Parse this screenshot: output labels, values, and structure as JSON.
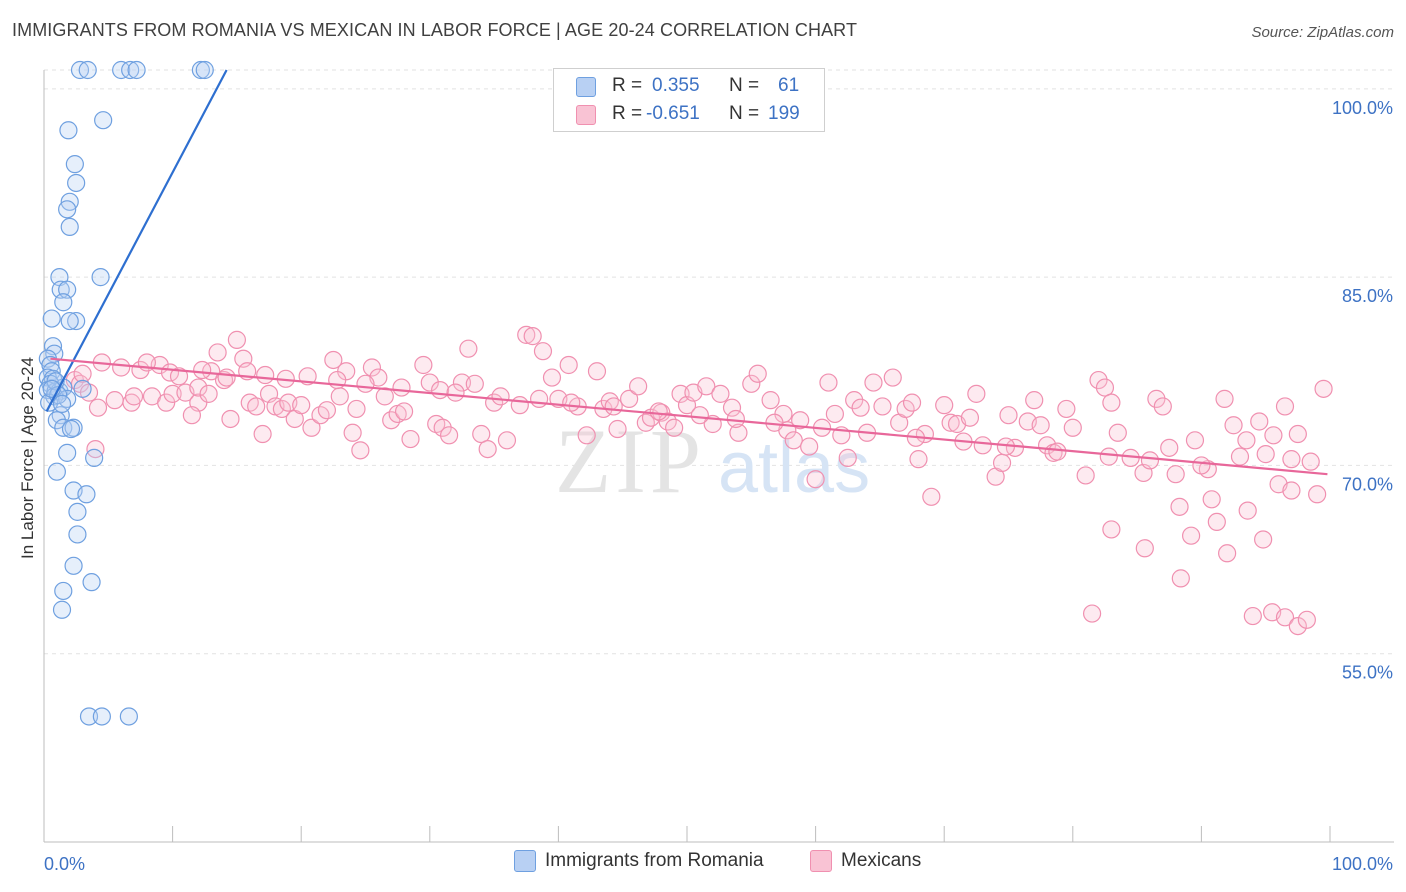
{
  "title": "IMMIGRANTS FROM ROMANIA VS MEXICAN IN LABOR FORCE | AGE 20-24 CORRELATION CHART",
  "source": "Source: ZipAtlas.com",
  "watermark": {
    "zip": "ZIP",
    "atlas": "atlas"
  },
  "legend_stats": [
    {
      "r_label": "R =",
      "r_value": "0.355",
      "n_label": "N =",
      "n_value": "61",
      "color": "#6fa0e0"
    },
    {
      "r_label": "R =",
      "r_value": "-0.651",
      "n_label": "N =",
      "n_value": "199",
      "color": "#f090b0"
    }
  ],
  "legend": [
    {
      "label": "Immigrants from Romania",
      "fill": "#b8d0f3",
      "stroke": "#6fa0e0"
    },
    {
      "label": "Mexicans",
      "fill": "#f9c3d4",
      "stroke": "#f090b0"
    }
  ],
  "chart_data": {
    "type": "scatter",
    "title": "IMMIGRANTS FROM ROMANIA VS MEXICAN IN LABOR FORCE | AGE 20-24 CORRELATION CHART",
    "xlabel": "",
    "ylabel": "In Labor Force | Age 20-24",
    "xlim": [
      0,
      100
    ],
    "ylim": [
      40,
      101.5
    ],
    "x_tick_labels": [
      "0.0%",
      "100.0%"
    ],
    "y_ticks": [
      55,
      70,
      85,
      100
    ],
    "y_tick_labels": [
      "55.0%",
      "70.0%",
      "85.0%",
      "100.0%"
    ],
    "grid": true,
    "colors": {
      "romania_stroke": "#6fa0e0",
      "romania_fill": "#b8d0f3",
      "romania_line": "#2e6fd0",
      "mexican_stroke": "#f090b0",
      "mexican_fill": "#f9c3d4",
      "mexican_line": "#e8679a",
      "tick_label": "#3d72c4",
      "grid": "#e2e2e2"
    },
    "series": [
      {
        "name": "Immigrants from Romania",
        "trend": [
          [
            0.2,
            74.3
          ],
          [
            14.2,
            101.5
          ]
        ],
        "points": [
          [
            2.8,
            101.5
          ],
          [
            3.4,
            101.5
          ],
          [
            6.0,
            101.5
          ],
          [
            6.7,
            101.5
          ],
          [
            7.2,
            101.5
          ],
          [
            12.2,
            101.5
          ],
          [
            12.5,
            101.5
          ],
          [
            4.6,
            97.5
          ],
          [
            1.9,
            96.7
          ],
          [
            2.4,
            94.0
          ],
          [
            2.5,
            92.5
          ],
          [
            2.0,
            91.0
          ],
          [
            1.8,
            90.4
          ],
          [
            2.0,
            89.0
          ],
          [
            1.2,
            85.0
          ],
          [
            4.4,
            85.0
          ],
          [
            1.3,
            84.0
          ],
          [
            1.8,
            84.0
          ],
          [
            1.5,
            83.0
          ],
          [
            0.6,
            81.7
          ],
          [
            2.5,
            81.5
          ],
          [
            2.0,
            81.5
          ],
          [
            0.7,
            79.5
          ],
          [
            0.8,
            78.9
          ],
          [
            0.3,
            78.5
          ],
          [
            0.5,
            78.0
          ],
          [
            0.6,
            77.5
          ],
          [
            0.3,
            77.0
          ],
          [
            0.7,
            76.9
          ],
          [
            0.5,
            76.5
          ],
          [
            0.3,
            76.0
          ],
          [
            0.9,
            75.9
          ],
          [
            1.2,
            75.9
          ],
          [
            1.5,
            76.2
          ],
          [
            3.0,
            76.1
          ],
          [
            0.8,
            75.5
          ],
          [
            1.8,
            75.3
          ],
          [
            0.4,
            75.0
          ],
          [
            1.3,
            74.0
          ],
          [
            1.0,
            73.6
          ],
          [
            1.5,
            73.0
          ],
          [
            2.3,
            73.0
          ],
          [
            1.8,
            71.0
          ],
          [
            3.9,
            70.6
          ],
          [
            1.0,
            69.5
          ],
          [
            2.3,
            68.0
          ],
          [
            3.3,
            67.7
          ],
          [
            2.6,
            66.3
          ],
          [
            2.6,
            64.5
          ],
          [
            2.3,
            62.0
          ],
          [
            1.5,
            60.0
          ],
          [
            3.7,
            60.7
          ],
          [
            1.4,
            58.5
          ],
          [
            3.5,
            50.0
          ],
          [
            4.5,
            50.0
          ],
          [
            6.6,
            50.0
          ],
          [
            0.9,
            76.7
          ],
          [
            1.1,
            75.6
          ],
          [
            0.6,
            76.1
          ],
          [
            1.4,
            74.9
          ],
          [
            2.1,
            72.9
          ]
        ]
      },
      {
        "name": "Mexicans",
        "trend": [
          [
            0.5,
            78.5
          ],
          [
            99.8,
            69.3
          ]
        ],
        "points": [
          [
            2.4,
            76.8
          ],
          [
            2.8,
            76.5
          ],
          [
            3.5,
            75.8
          ],
          [
            4.2,
            74.6
          ],
          [
            4.0,
            71.3
          ],
          [
            5.5,
            75.2
          ],
          [
            6.8,
            75.0
          ],
          [
            7.0,
            75.5
          ],
          [
            8.4,
            75.5
          ],
          [
            9.0,
            78.0
          ],
          [
            9.5,
            75.0
          ],
          [
            10.0,
            75.7
          ],
          [
            11.0,
            75.8
          ],
          [
            12.0,
            75.0
          ],
          [
            12.0,
            76.2
          ],
          [
            11.5,
            74.0
          ],
          [
            12.8,
            75.7
          ],
          [
            13.5,
            79.0
          ],
          [
            13.0,
            77.5
          ],
          [
            14.0,
            76.8
          ],
          [
            14.5,
            73.7
          ],
          [
            15.0,
            80.0
          ],
          [
            15.5,
            78.5
          ],
          [
            16.0,
            75.0
          ],
          [
            16.5,
            74.7
          ],
          [
            17.0,
            72.5
          ],
          [
            17.5,
            75.7
          ],
          [
            18.0,
            74.7
          ],
          [
            18.5,
            74.5
          ],
          [
            19.0,
            75.0
          ],
          [
            19.5,
            73.7
          ],
          [
            20.0,
            74.8
          ],
          [
            20.8,
            73.0
          ],
          [
            21.5,
            74.0
          ],
          [
            22.0,
            74.4
          ],
          [
            22.5,
            78.4
          ],
          [
            23.0,
            75.5
          ],
          [
            23.5,
            77.5
          ],
          [
            24.0,
            72.6
          ],
          [
            24.3,
            74.5
          ],
          [
            24.6,
            71.2
          ],
          [
            25.5,
            77.8
          ],
          [
            26.0,
            77.0
          ],
          [
            26.5,
            75.5
          ],
          [
            27.0,
            73.6
          ],
          [
            27.5,
            74.1
          ],
          [
            28.0,
            74.3
          ],
          [
            28.5,
            72.1
          ],
          [
            29.5,
            78.0
          ],
          [
            30.0,
            76.6
          ],
          [
            30.5,
            73.3
          ],
          [
            31.0,
            73.0
          ],
          [
            31.5,
            72.4
          ],
          [
            32.5,
            76.6
          ],
          [
            33.0,
            79.3
          ],
          [
            33.5,
            76.5
          ],
          [
            34.0,
            72.5
          ],
          [
            34.5,
            71.3
          ],
          [
            35.0,
            75.0
          ],
          [
            36.0,
            72.0
          ],
          [
            37.0,
            74.8
          ],
          [
            37.5,
            80.4
          ],
          [
            38.0,
            80.3
          ],
          [
            38.8,
            79.1
          ],
          [
            39.5,
            77.0
          ],
          [
            40.0,
            75.3
          ],
          [
            40.8,
            78.0
          ],
          [
            41.5,
            74.7
          ],
          [
            42.2,
            72.4
          ],
          [
            43.0,
            77.5
          ],
          [
            43.5,
            74.5
          ],
          [
            44.0,
            75.1
          ],
          [
            44.6,
            72.9
          ],
          [
            45.5,
            75.3
          ],
          [
            46.2,
            76.3
          ],
          [
            46.8,
            73.4
          ],
          [
            47.2,
            73.8
          ],
          [
            48.0,
            74.2
          ],
          [
            48.5,
            73.5
          ],
          [
            49.0,
            73.0
          ],
          [
            49.5,
            75.7
          ],
          [
            50.0,
            74.8
          ],
          [
            50.5,
            75.8
          ],
          [
            51.5,
            76.3
          ],
          [
            52.0,
            73.3
          ],
          [
            52.6,
            75.7
          ],
          [
            53.5,
            74.6
          ],
          [
            54.0,
            72.6
          ],
          [
            55.0,
            76.5
          ],
          [
            55.5,
            77.3
          ],
          [
            56.5,
            75.2
          ],
          [
            57.5,
            74.1
          ],
          [
            57.8,
            72.8
          ],
          [
            58.3,
            72.0
          ],
          [
            58.8,
            73.6
          ],
          [
            59.5,
            71.5
          ],
          [
            60.0,
            68.9
          ],
          [
            61.0,
            76.6
          ],
          [
            61.5,
            74.1
          ],
          [
            62.0,
            72.4
          ],
          [
            62.5,
            70.6
          ],
          [
            63.0,
            75.2
          ],
          [
            63.5,
            74.6
          ],
          [
            64.5,
            76.6
          ],
          [
            65.2,
            74.7
          ],
          [
            66.0,
            77.0
          ],
          [
            66.5,
            73.4
          ],
          [
            67.0,
            74.5
          ],
          [
            67.5,
            75.0
          ],
          [
            68.0,
            70.5
          ],
          [
            68.5,
            72.5
          ],
          [
            69.0,
            67.5
          ],
          [
            70.0,
            74.8
          ],
          [
            70.5,
            73.4
          ],
          [
            71.0,
            73.3
          ],
          [
            72.0,
            73.8
          ],
          [
            72.5,
            75.7
          ],
          [
            73.0,
            71.6
          ],
          [
            74.0,
            69.1
          ],
          [
            74.5,
            70.2
          ],
          [
            75.0,
            74.0
          ],
          [
            75.5,
            71.4
          ],
          [
            76.5,
            73.5
          ],
          [
            77.0,
            75.2
          ],
          [
            77.5,
            73.2
          ],
          [
            78.0,
            71.6
          ],
          [
            78.5,
            71.0
          ],
          [
            79.5,
            74.5
          ],
          [
            80.0,
            73.0
          ],
          [
            81.0,
            69.2
          ],
          [
            82.0,
            76.8
          ],
          [
            82.5,
            76.2
          ],
          [
            83.0,
            75.0
          ],
          [
            83.5,
            72.6
          ],
          [
            84.5,
            70.6
          ],
          [
            85.5,
            69.4
          ],
          [
            86.5,
            75.3
          ],
          [
            87.0,
            74.7
          ],
          [
            87.5,
            71.4
          ],
          [
            88.0,
            69.3
          ],
          [
            88.3,
            66.7
          ],
          [
            89.5,
            72.0
          ],
          [
            90.5,
            69.7
          ],
          [
            91.2,
            65.5
          ],
          [
            91.8,
            75.3
          ],
          [
            92.5,
            73.2
          ],
          [
            93.0,
            70.7
          ],
          [
            93.5,
            72.0
          ],
          [
            94.5,
            73.5
          ],
          [
            95.0,
            70.9
          ],
          [
            95.6,
            72.4
          ],
          [
            96.0,
            68.5
          ],
          [
            96.5,
            74.7
          ],
          [
            97.0,
            70.5
          ],
          [
            97.5,
            72.5
          ],
          [
            98.5,
            70.3
          ],
          [
            99.5,
            76.1
          ],
          [
            83.0,
            64.9
          ],
          [
            85.6,
            63.4
          ],
          [
            88.4,
            61.0
          ],
          [
            89.2,
            64.4
          ],
          [
            90.8,
            67.3
          ],
          [
            92.0,
            63.0
          ],
          [
            93.6,
            66.4
          ],
          [
            94.8,
            64.1
          ],
          [
            81.5,
            58.2
          ],
          [
            94.0,
            58.0
          ],
          [
            95.5,
            58.3
          ],
          [
            96.5,
            57.9
          ],
          [
            97.5,
            57.2
          ],
          [
            98.2,
            57.7
          ],
          [
            99.0,
            67.7
          ],
          [
            97.0,
            68.0
          ],
          [
            3.0,
            77.3
          ],
          [
            4.5,
            78.2
          ],
          [
            6.0,
            77.8
          ],
          [
            7.5,
            77.6
          ],
          [
            8.0,
            78.2
          ],
          [
            9.8,
            77.4
          ],
          [
            10.5,
            77.1
          ],
          [
            12.3,
            77.6
          ],
          [
            14.2,
            77.0
          ],
          [
            15.8,
            77.5
          ],
          [
            17.2,
            77.2
          ],
          [
            18.8,
            76.9
          ],
          [
            20.5,
            77.1
          ],
          [
            22.8,
            76.8
          ],
          [
            25.0,
            76.5
          ],
          [
            27.8,
            76.2
          ],
          [
            30.8,
            76.0
          ],
          [
            32.0,
            75.8
          ],
          [
            35.5,
            75.5
          ],
          [
            38.5,
            75.3
          ],
          [
            41.0,
            75.0
          ],
          [
            44.3,
            74.7
          ],
          [
            47.8,
            74.3
          ],
          [
            51.0,
            74.0
          ],
          [
            53.8,
            73.7
          ],
          [
            56.8,
            73.4
          ],
          [
            60.5,
            73.0
          ],
          [
            64.0,
            72.6
          ],
          [
            67.8,
            72.2
          ],
          [
            71.5,
            71.9
          ],
          [
            74.8,
            71.5
          ],
          [
            78.8,
            71.1
          ],
          [
            82.8,
            70.7
          ],
          [
            86.0,
            70.4
          ],
          [
            90.0,
            70.0
          ]
        ]
      }
    ]
  }
}
